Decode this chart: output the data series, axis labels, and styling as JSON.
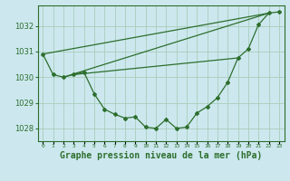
{
  "background_color": "#cce8ee",
  "grid_color": "#aaccbb",
  "line_color": "#2d6e2d",
  "marker_color": "#2d6e2d",
  "xlabel": "Graphe pression niveau de la mer (hPa)",
  "xlabel_fontsize": 7,
  "ylim": [
    1027.5,
    1032.8
  ],
  "xlim": [
    -0.5,
    23.5
  ],
  "yticks": [
    1028,
    1029,
    1030,
    1031,
    1032
  ],
  "xtick_labels": [
    "0",
    "1",
    "2",
    "3",
    "4",
    "5",
    "6",
    "7",
    "8",
    "9",
    "10",
    "11",
    "12",
    "13",
    "14",
    "15",
    "16",
    "17",
    "18",
    "19",
    "20",
    "21",
    "22",
    "23"
  ],
  "line1": [
    1030.9,
    1030.1,
    1030.0,
    1030.1,
    1030.2,
    1029.35,
    1028.75,
    1028.55,
    1028.4,
    1028.45,
    1028.05,
    1028.0,
    1028.35,
    1028.0,
    1028.05,
    1028.6,
    1028.85,
    1029.2,
    1029.8,
    1030.75,
    1031.1,
    1032.05,
    1032.5,
    1032.55
  ],
  "line2_x": [
    0,
    22
  ],
  "line2_y": [
    1030.9,
    1032.5
  ],
  "line3_x": [
    2,
    22
  ],
  "line3_y": [
    1030.0,
    1032.5
  ],
  "line4_x": [
    3,
    19
  ],
  "line4_y": [
    1030.1,
    1030.75
  ]
}
